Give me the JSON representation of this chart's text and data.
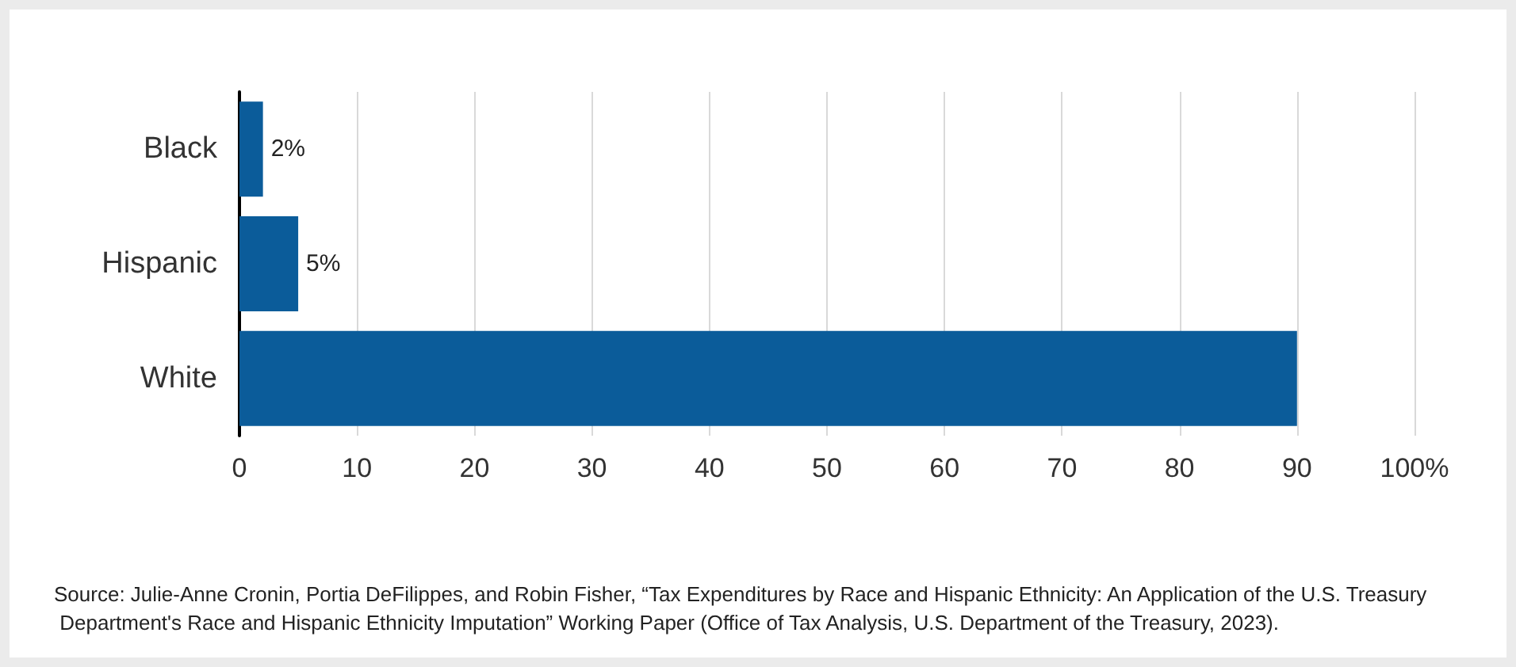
{
  "chart_data": {
    "type": "bar",
    "orientation": "horizontal",
    "categories": [
      "Black",
      "Hispanic",
      "White"
    ],
    "values": [
      2,
      5,
      90
    ],
    "value_labels": [
      "2%",
      "5%",
      null
    ],
    "color": "#0b5c9a",
    "xlim": [
      0,
      100
    ],
    "xticks": [
      0,
      10,
      20,
      30,
      40,
      50,
      60,
      70,
      80,
      90,
      {
        "value": 100,
        "label": "100%"
      }
    ],
    "grid": "x",
    "annotations": [
      "Source: Julie-Anne Cronin, Portia DeFilippes, and Robin Fisher, “Tax Expenditures by Race and Hispanic Ethnicity: An Application of the U.S. Treasury Department's Race and Hispanic Ethnicity Imputation” Working Paper (Office of Tax Analysis, U.S. Department of the Treasury, 2023)."
    ]
  }
}
